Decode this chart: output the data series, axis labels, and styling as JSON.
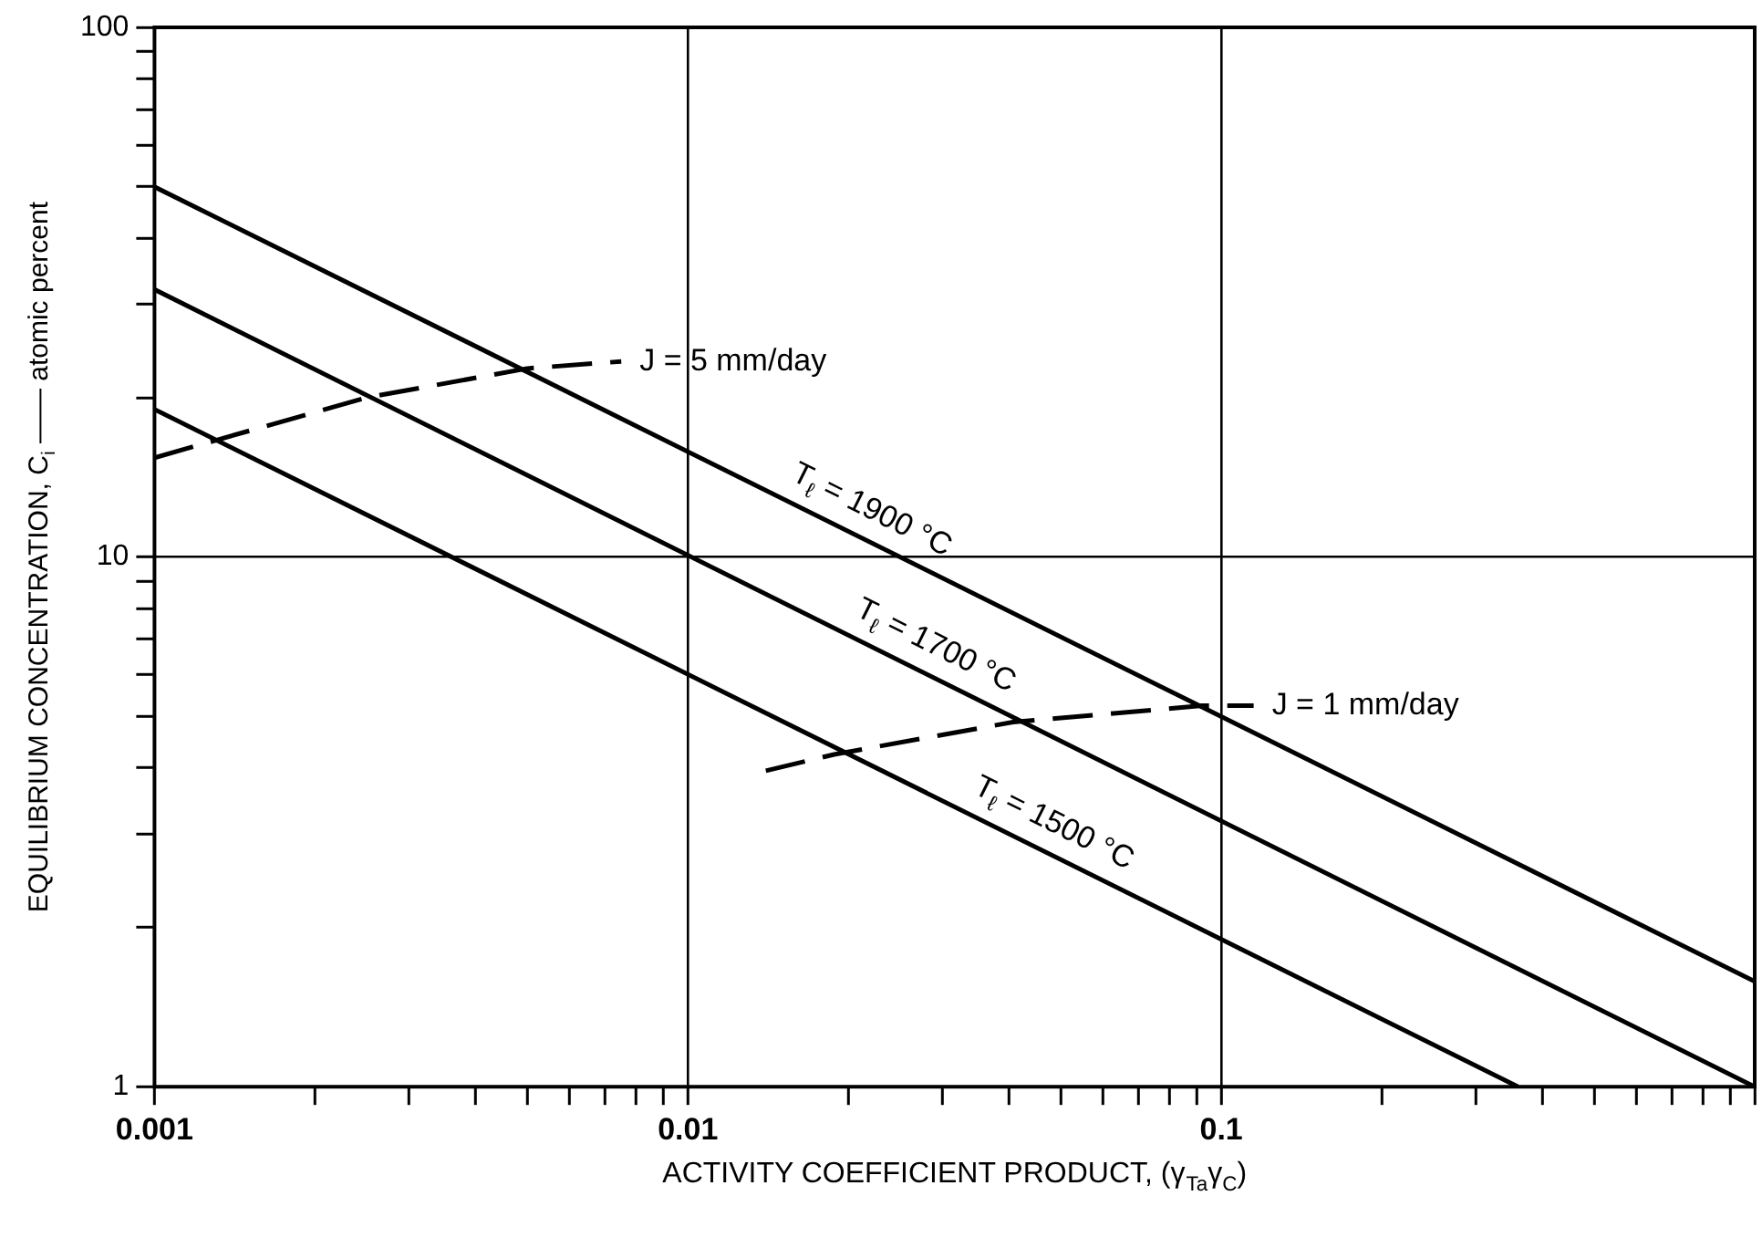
{
  "chart_data": {
    "type": "line",
    "xlabel": "ACTIVITY COEFFICIENT PRODUCT, (γ$_{Ta}$γ$_{C}$)",
    "ylabel": "EQUILIBRIUM CONCENTRATION, C$_{i}$ —— atomic percent",
    "log": "xy",
    "grid": true,
    "marker": "none",
    "legend": false,
    "xlim": [
      0.001,
      1
    ],
    "ylim": [
      1,
      100
    ],
    "xticks": [
      {
        "value": 0.001,
        "label": "0.001"
      },
      {
        "value": 0.002,
        "label": null
      },
      {
        "value": 0.003,
        "label": null
      },
      {
        "value": 0.004,
        "label": null
      },
      {
        "value": 0.005,
        "label": null
      },
      {
        "value": 0.006,
        "label": null
      },
      {
        "value": 0.007,
        "label": null
      },
      {
        "value": 0.008,
        "label": null
      },
      {
        "value": 0.009,
        "label": null
      },
      {
        "value": 0.01,
        "label": "0.01"
      },
      {
        "value": 0.02,
        "label": null
      },
      {
        "value": 0.03,
        "label": null
      },
      {
        "value": 0.04,
        "label": null
      },
      {
        "value": 0.05,
        "label": null
      },
      {
        "value": 0.06,
        "label": null
      },
      {
        "value": 0.07,
        "label": null
      },
      {
        "value": 0.08,
        "label": null
      },
      {
        "value": 0.09,
        "label": null
      },
      {
        "value": 0.1,
        "label": "0.1"
      },
      {
        "value": 0.2,
        "label": null
      },
      {
        "value": 0.3,
        "label": null
      },
      {
        "value": 0.4,
        "label": null
      },
      {
        "value": 0.5,
        "label": null
      },
      {
        "value": 0.6,
        "label": null
      },
      {
        "value": 0.7,
        "label": null
      },
      {
        "value": 0.8,
        "label": null
      },
      {
        "value": 0.9,
        "label": null
      },
      {
        "value": 1,
        "label": null
      }
    ],
    "yticks": [
      1,
      {
        "value": 2,
        "label": null
      },
      {
        "value": 3,
        "label": null
      },
      {
        "value": 4,
        "label": null
      },
      {
        "value": 5,
        "label": null
      },
      {
        "value": 6,
        "label": null
      },
      {
        "value": 7,
        "label": null
      },
      {
        "value": 8,
        "label": null
      },
      {
        "value": 9,
        "label": null
      },
      10,
      {
        "value": 20,
        "label": null
      },
      {
        "value": 30,
        "label": null
      },
      {
        "value": 40,
        "label": null
      },
      {
        "value": 50,
        "label": null
      },
      {
        "value": 60,
        "label": null
      },
      {
        "value": 70,
        "label": null
      },
      {
        "value": 80,
        "label": null
      },
      {
        "value": 90,
        "label": null
      },
      100
    ],
    "series": [
      {
        "name": "T$_{ℓ}$ = 1900 °C",
        "color": "#000000",
        "line_style": "solid",
        "x": [
          0.001,
          1
        ],
        "values": [
          50,
          1.58
        ]
      },
      {
        "name": "T$_{ℓ}$ = 1700 °C",
        "color": "#000000",
        "line_style": "solid",
        "x": [
          0.001,
          1
        ],
        "values": [
          32,
          1
        ]
      },
      {
        "name": "T$_{ℓ}$ = 1500 °C",
        "color": "#000000",
        "line_style": "solid",
        "x": [
          0.001,
          0.36
        ],
        "values": [
          19,
          1
        ]
      },
      {
        "name": "J = 5 mm/day",
        "color": "#000000",
        "line_style": "dashed",
        "x": [
          0.001,
          0.0013,
          0.0025,
          0.005,
          0.0075
        ],
        "values": [
          15.4,
          16.6,
          20,
          22.7,
          23.4
        ]
      },
      {
        "name": "J = 1 mm/day",
        "color": "#000000",
        "line_style": "dashed",
        "x": [
          0.014,
          0.0188,
          0.0407,
          0.092,
          0.115
        ],
        "values": [
          3.95,
          4.24,
          4.88,
          5.24,
          5.24
        ]
      }
    ]
  }
}
